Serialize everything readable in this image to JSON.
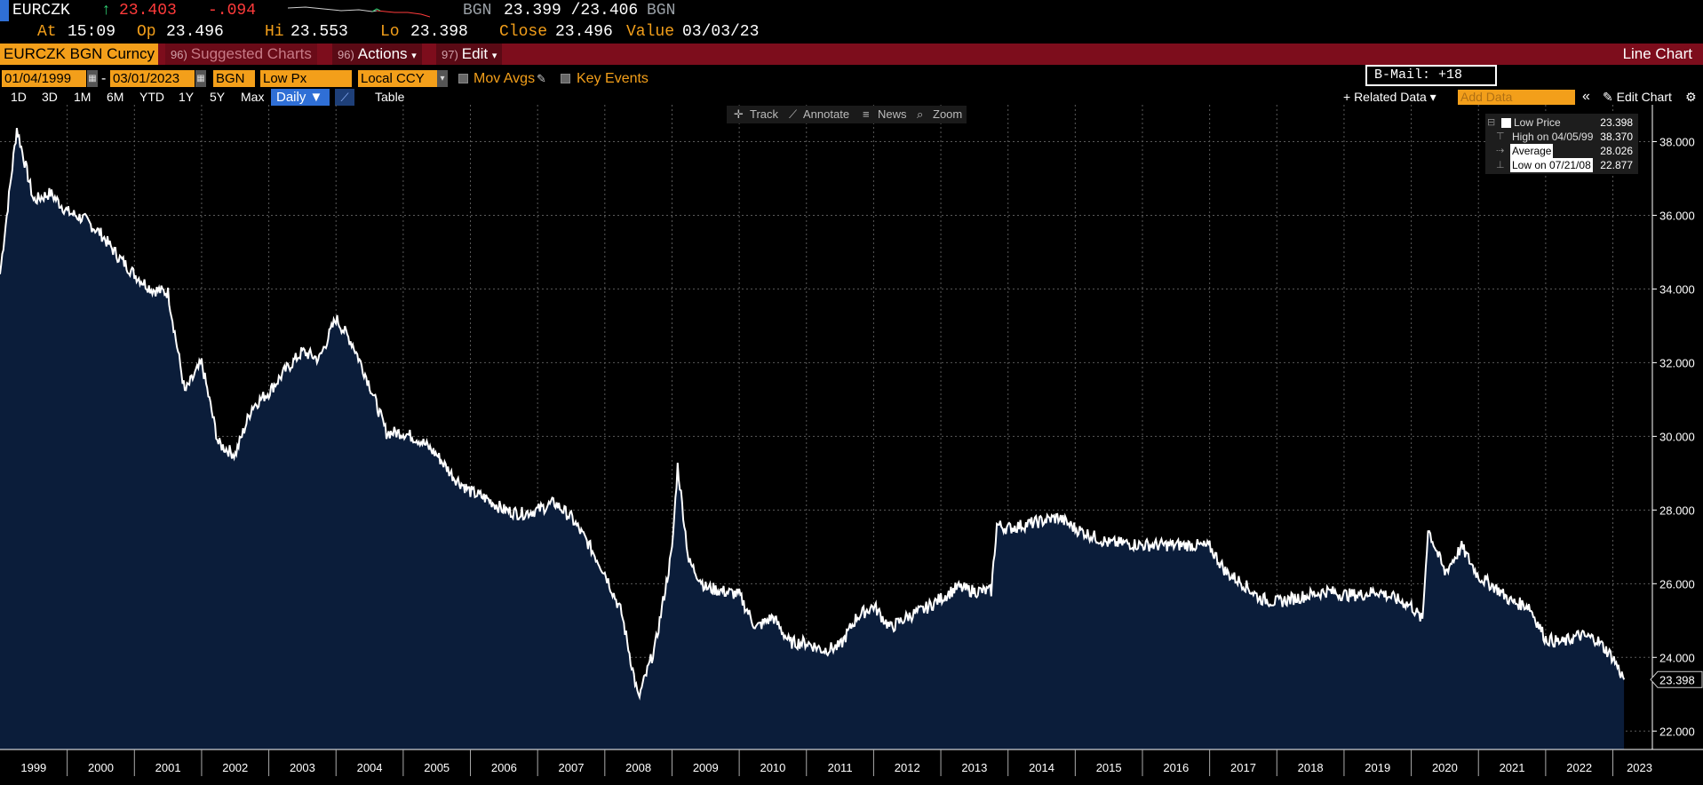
{
  "quote": {
    "ticker": "EURCZK",
    "arrow": "↑",
    "last": "23.403",
    "change": "-.094",
    "source": "BGN",
    "bid_ask": "23.399 /23.406",
    "source2": "BGN",
    "at_label": "At",
    "time": "15:09",
    "open_label": "Op",
    "open": "23.496",
    "high_label": "Hi",
    "high": "23.553",
    "low_label": "Lo",
    "low": "23.398",
    "close_label": "Close",
    "close": "23.496",
    "value_label": "Value",
    "value_date": "03/03/23"
  },
  "function_bar": {
    "security": "EURCZK BGN Curncy",
    "suggested": "Suggested Charts",
    "suggested_num": "96)",
    "actions": "Actions",
    "actions_num": "96)",
    "edit": "Edit",
    "edit_num": "97)",
    "title": "Line Chart"
  },
  "params": {
    "start_date": "01/04/1999",
    "dash": "-",
    "end_date": "03/01/2023",
    "source": "BGN",
    "field": "Low Px",
    "currency": "Local CCY",
    "mov_avgs": "Mov Avgs",
    "key_events": "Key Events",
    "bmail": "B-Mail: +18"
  },
  "periods": {
    "items": [
      "1D",
      "3D",
      "1M",
      "6M",
      "YTD",
      "1Y",
      "5Y",
      "Max"
    ],
    "selected": "Daily ▼",
    "table": "Table",
    "related_data": "+ Related Data ▾",
    "add_data": "Add Data",
    "collapse": "«",
    "edit_chart": "✎ Edit Chart",
    "gear": "⚙"
  },
  "toolbar": {
    "track": "Track",
    "annotate": "Annotate",
    "news": "News",
    "zoom": "Zoom"
  },
  "legend": {
    "low_price_label": "Low Price",
    "low_price_value": "23.398",
    "high_label": "High on 04/05/99",
    "high_value": "38.370",
    "avg_label": "Average",
    "avg_value": "28.026",
    "low_label": "Low on 07/21/08",
    "low_value": "22.877"
  },
  "colors": {
    "accent": "#f39f1a",
    "function_bar": "#7d0d1c",
    "line": "#ffffff",
    "area_fill": "#0b1d3a",
    "grid": "#5a5a5a"
  },
  "chart_data": {
    "type": "area",
    "series": [
      {
        "name": "Low Price",
        "x": [
          "1999-01",
          "1999-04",
          "1999-07",
          "1999-10",
          "2000-01",
          "2000-04",
          "2000-07",
          "2000-10",
          "2001-01",
          "2001-04",
          "2001-07",
          "2001-10",
          "2002-01",
          "2002-04",
          "2002-07",
          "2002-10",
          "2003-01",
          "2003-04",
          "2003-07",
          "2003-10",
          "2004-01",
          "2004-04",
          "2004-07",
          "2004-10",
          "2005-01",
          "2005-04",
          "2005-07",
          "2005-10",
          "2006-01",
          "2006-04",
          "2006-07",
          "2006-10",
          "2007-01",
          "2007-04",
          "2007-07",
          "2007-10",
          "2008-01",
          "2008-04",
          "2008-07",
          "2008-10",
          "2009-01",
          "2009-02",
          "2009-04",
          "2009-07",
          "2009-10",
          "2010-01",
          "2010-04",
          "2010-07",
          "2010-10",
          "2011-01",
          "2011-04",
          "2011-07",
          "2011-10",
          "2012-01",
          "2012-04",
          "2012-07",
          "2012-10",
          "2013-01",
          "2013-04",
          "2013-07",
          "2013-10",
          "2013-11",
          "2014-01",
          "2014-04",
          "2014-07",
          "2014-10",
          "2015-01",
          "2015-04",
          "2015-07",
          "2015-10",
          "2016-01",
          "2016-04",
          "2016-07",
          "2016-10",
          "2017-01",
          "2017-04",
          "2017-07",
          "2017-10",
          "2018-01",
          "2018-04",
          "2018-07",
          "2018-10",
          "2019-01",
          "2019-04",
          "2019-07",
          "2019-10",
          "2020-01",
          "2020-03",
          "2020-04",
          "2020-07",
          "2020-10",
          "2021-01",
          "2021-04",
          "2021-07",
          "2021-10",
          "2022-01",
          "2022-04",
          "2022-07",
          "2022-10",
          "2023-01",
          "2023-03"
        ],
        "values": [
          34.4,
          38.37,
          36.4,
          36.6,
          36.1,
          35.9,
          35.5,
          34.9,
          34.4,
          34.0,
          33.9,
          31.2,
          32.0,
          29.8,
          29.5,
          30.8,
          31.2,
          31.8,
          32.3,
          32.1,
          33.2,
          32.5,
          31.4,
          30.1,
          30.1,
          29.9,
          29.5,
          28.9,
          28.5,
          28.3,
          28.0,
          27.9,
          28.0,
          28.2,
          27.8,
          27.1,
          26.3,
          25.2,
          22.877,
          24.3,
          26.9,
          29.2,
          26.6,
          25.9,
          25.8,
          25.7,
          24.8,
          25.1,
          24.4,
          24.4,
          24.2,
          24.3,
          25.1,
          25.4,
          24.8,
          25.1,
          25.3,
          25.6,
          25.9,
          25.8,
          25.8,
          27.6,
          27.5,
          27.6,
          27.7,
          27.8,
          27.5,
          27.3,
          27.1,
          27.1,
          27.05,
          27.05,
          27.05,
          27.05,
          27.0,
          26.3,
          26.0,
          25.6,
          25.5,
          25.6,
          25.7,
          25.8,
          25.7,
          25.7,
          25.8,
          25.6,
          25.4,
          25.0,
          27.5,
          26.3,
          27.0,
          26.2,
          25.9,
          25.5,
          25.4,
          24.5,
          24.4,
          24.6,
          24.5,
          24.0,
          23.398
        ]
      }
    ],
    "title": "",
    "xlabel": "",
    "ylabel": "",
    "ylim": [
      21.5,
      39.0
    ],
    "yticks": [
      "22.000",
      "24.000",
      "26.000",
      "28.000",
      "30.000",
      "32.000",
      "34.000",
      "36.000",
      "38.000"
    ],
    "xticks": [
      "1999",
      "2000",
      "2001",
      "2002",
      "2003",
      "2004",
      "2005",
      "2006",
      "2007",
      "2008",
      "2009",
      "2010",
      "2011",
      "2012",
      "2013",
      "2014",
      "2015",
      "2016",
      "2017",
      "2018",
      "2019",
      "2020",
      "2021",
      "2022",
      "2023"
    ],
    "last_label": "23.398",
    "grid": true,
    "legend_position": "top-right"
  }
}
